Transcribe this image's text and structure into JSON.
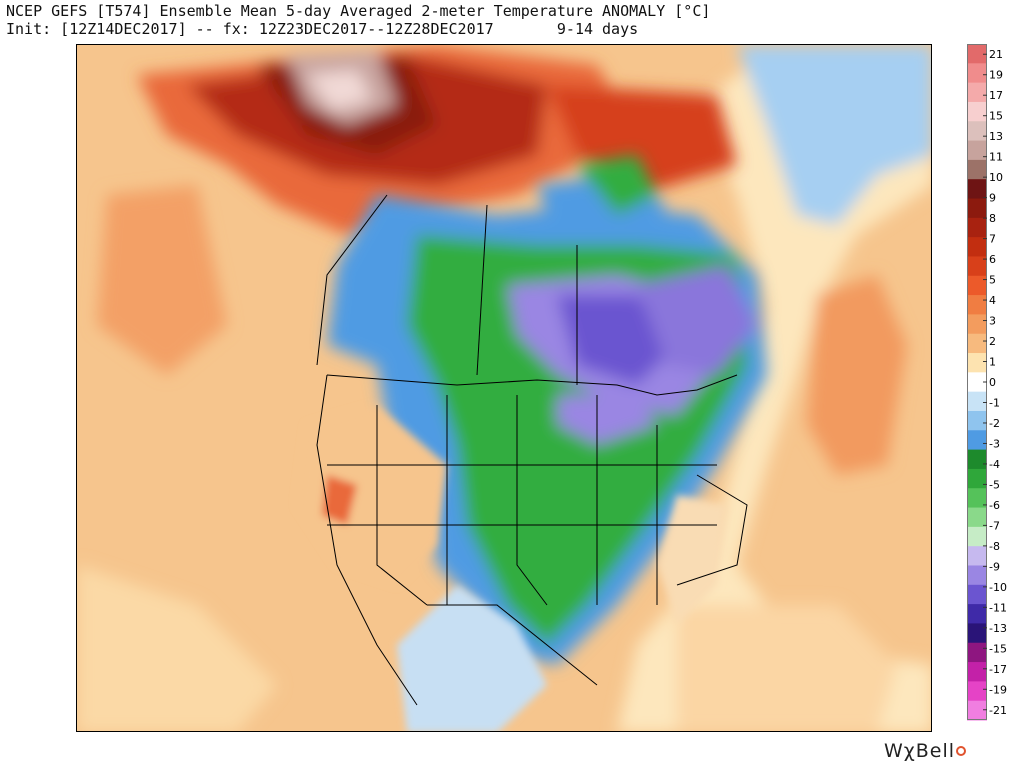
{
  "header": {
    "line1": "NCEP GEFS [T574] Ensemble Mean 5-day Averaged 2-meter Temperature ANOMALY [°C]",
    "line2": "Init: [12Z14DEC2017] -- fx: 12Z23DEC2017--12Z28DEC2017       9-14 days"
  },
  "legend": {
    "labels": [
      "21",
      "19",
      "17",
      "15",
      "13",
      "11",
      "10",
      "9",
      "8",
      "7",
      "6",
      "5",
      "4",
      "3",
      "2",
      "1",
      "0",
      "-1",
      "-2",
      "-3",
      "-4",
      "-5",
      "-6",
      "-7",
      "-8",
      "-9",
      "-10",
      "-11",
      "-13",
      "-15",
      "-17",
      "-19",
      "-21"
    ],
    "colors": [
      "#e26a6a",
      "#f08c8c",
      "#f4aaaa",
      "#f7cfcf",
      "#dcc0bc",
      "#c7a39d",
      "#9c7268",
      "#6e1414",
      "#8c1a0e",
      "#a82210",
      "#c22e10",
      "#d8401a",
      "#ec5a2a",
      "#f07d42",
      "#f39c5e",
      "#f7ba7e",
      "#fde3b0",
      "#ffffff",
      "#c8e3f6",
      "#8fc4ee",
      "#4f9be3",
      "#1d8a2c",
      "#2fa73a",
      "#55c25a",
      "#8ad98a",
      "#c6ecc6",
      "#c6b9ef",
      "#9a86e3",
      "#6b55d0",
      "#3f2aa8",
      "#2a1478",
      "#8e1680",
      "#c321a8",
      "#e543c6",
      "#f07ee0"
    ]
  },
  "map": {
    "ocean_color": "#f5c48a",
    "warm_color": "#ee7a45",
    "hot_color": "#9c1c10",
    "cold_green": "#33ad3f",
    "cold_blue": "#4f9be3",
    "cold_purple": "#6b55d0"
  },
  "brand": {
    "name": "WχBell"
  }
}
